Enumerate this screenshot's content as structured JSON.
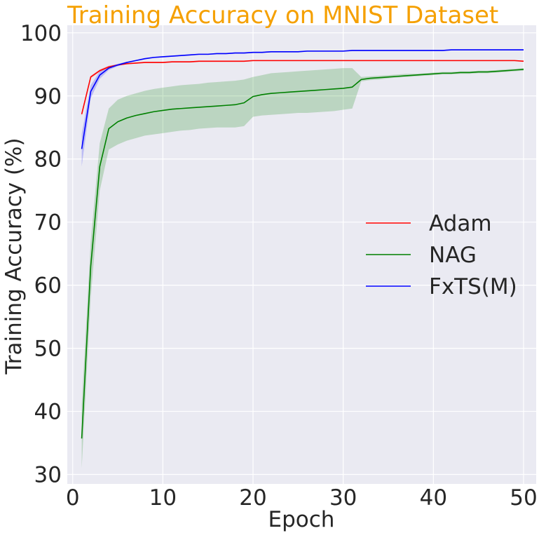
{
  "chart_data": {
    "type": "line",
    "title": "Training Accuracy on MNIST Dataset",
    "xlabel": "Epoch",
    "ylabel": "Training Accuracy (%)",
    "xlim": [
      -0.6,
      51.4
    ],
    "ylim": [
      28.5,
      101.2
    ],
    "xticks": [
      0,
      10,
      20,
      30,
      40,
      50
    ],
    "yticks": [
      30,
      40,
      50,
      60,
      70,
      80,
      90,
      100
    ],
    "grid": true,
    "legend_position": "center-right",
    "x": [
      1,
      2,
      3,
      4,
      5,
      6,
      7,
      8,
      9,
      10,
      11,
      12,
      13,
      14,
      15,
      16,
      17,
      18,
      19,
      20,
      21,
      22,
      23,
      24,
      25,
      26,
      27,
      28,
      29,
      30,
      31,
      32,
      33,
      34,
      35,
      36,
      37,
      38,
      39,
      40,
      41,
      42,
      43,
      44,
      45,
      46,
      47,
      48,
      49,
      50
    ],
    "series": [
      {
        "name": "Adam",
        "color": "#ff0000",
        "values": [
          87.1,
          93.0,
          94.0,
          94.6,
          94.9,
          95.1,
          95.2,
          95.3,
          95.3,
          95.3,
          95.4,
          95.4,
          95.4,
          95.5,
          95.5,
          95.5,
          95.5,
          95.5,
          95.5,
          95.6,
          95.6,
          95.6,
          95.6,
          95.6,
          95.6,
          95.6,
          95.6,
          95.6,
          95.6,
          95.6,
          95.6,
          95.6,
          95.6,
          95.6,
          95.6,
          95.6,
          95.6,
          95.6,
          95.6,
          95.6,
          95.6,
          95.6,
          95.6,
          95.6,
          95.6,
          95.6,
          95.6,
          95.6,
          95.6,
          95.5
        ],
        "lower": [
          86.8,
          92.8,
          93.8,
          94.4,
          94.8,
          95.0,
          95.1,
          95.2,
          95.2,
          95.2,
          95.3,
          95.3,
          95.3,
          95.4,
          95.4,
          95.4,
          95.4,
          95.4,
          95.4,
          95.5,
          95.5,
          95.5,
          95.5,
          95.5,
          95.5,
          95.5,
          95.5,
          95.5,
          95.5,
          95.5,
          95.5,
          95.5,
          95.5,
          95.5,
          95.5,
          95.5,
          95.5,
          95.5,
          95.5,
          95.5,
          95.5,
          95.5,
          95.5,
          95.5,
          95.5,
          95.5,
          95.5,
          95.5,
          95.5,
          95.4
        ],
        "upper": [
          87.4,
          93.2,
          94.2,
          94.8,
          95.0,
          95.2,
          95.3,
          95.4,
          95.4,
          95.4,
          95.5,
          95.5,
          95.5,
          95.6,
          95.6,
          95.6,
          95.6,
          95.6,
          95.6,
          95.7,
          95.7,
          95.7,
          95.7,
          95.7,
          95.7,
          95.7,
          95.7,
          95.7,
          95.7,
          95.7,
          95.7,
          95.7,
          95.7,
          95.7,
          95.7,
          95.7,
          95.7,
          95.7,
          95.7,
          95.7,
          95.7,
          95.7,
          95.7,
          95.7,
          95.7,
          95.7,
          95.7,
          95.7,
          95.7,
          95.6
        ]
      },
      {
        "name": "NAG",
        "color": "#008000",
        "values": [
          35.7,
          63.0,
          78.8,
          84.8,
          85.9,
          86.5,
          86.9,
          87.2,
          87.5,
          87.7,
          87.9,
          88.0,
          88.1,
          88.2,
          88.3,
          88.4,
          88.5,
          88.6,
          88.9,
          89.9,
          90.2,
          90.4,
          90.5,
          90.6,
          90.7,
          90.8,
          90.9,
          91.0,
          91.1,
          91.2,
          91.4,
          92.6,
          92.8,
          92.9,
          93.0,
          93.1,
          93.2,
          93.3,
          93.4,
          93.5,
          93.6,
          93.6,
          93.7,
          93.7,
          93.8,
          93.8,
          93.9,
          94.0,
          94.1,
          94.2
        ],
        "lower": [
          31.0,
          58.0,
          75.0,
          81.5,
          82.3,
          82.9,
          83.3,
          83.7,
          83.9,
          84.1,
          84.3,
          84.5,
          84.6,
          84.8,
          84.9,
          85.0,
          85.0,
          85.0,
          85.2,
          86.7,
          86.9,
          87.0,
          87.1,
          87.2,
          87.3,
          87.3,
          87.4,
          87.5,
          87.6,
          87.8,
          88.0,
          92.3,
          92.5,
          92.6,
          92.8,
          92.9,
          93.0,
          93.1,
          93.2,
          93.3,
          93.4,
          93.4,
          93.5,
          93.5,
          93.6,
          93.6,
          93.7,
          93.8,
          93.9,
          94.0
        ],
        "upper": [
          41.0,
          67.0,
          82.5,
          88.0,
          89.4,
          90.0,
          90.4,
          90.8,
          91.1,
          91.3,
          91.5,
          91.7,
          91.8,
          91.9,
          92.1,
          92.2,
          92.3,
          92.4,
          92.6,
          93.0,
          93.3,
          93.6,
          93.7,
          93.8,
          93.9,
          94.0,
          94.1,
          94.2,
          94.3,
          94.4,
          94.4,
          93.0,
          93.1,
          93.2,
          93.3,
          93.4,
          93.5,
          93.5,
          93.6,
          93.7,
          93.8,
          93.8,
          93.9,
          93.9,
          94.0,
          94.0,
          94.1,
          94.2,
          94.3,
          94.4
        ]
      },
      {
        "name": "FxTS(M)",
        "color": "#0000ff",
        "values": [
          81.6,
          90.7,
          93.3,
          94.4,
          94.9,
          95.3,
          95.6,
          95.9,
          96.1,
          96.2,
          96.3,
          96.4,
          96.5,
          96.6,
          96.6,
          96.7,
          96.7,
          96.8,
          96.8,
          96.9,
          96.9,
          97.0,
          97.0,
          97.0,
          97.0,
          97.1,
          97.1,
          97.1,
          97.1,
          97.1,
          97.2,
          97.2,
          97.2,
          97.2,
          97.2,
          97.2,
          97.2,
          97.2,
          97.2,
          97.2,
          97.2,
          97.3,
          97.3,
          97.3,
          97.3,
          97.3,
          97.3,
          97.3,
          97.3,
          97.3
        ],
        "lower": [
          78.8,
          89.6,
          92.7,
          94.1,
          94.7,
          95.2,
          95.5,
          95.8,
          96.0,
          96.1,
          96.2,
          96.3,
          96.4,
          96.5,
          96.5,
          96.6,
          96.6,
          96.7,
          96.7,
          96.8,
          96.8,
          96.9,
          96.9,
          96.9,
          96.9,
          97.0,
          97.0,
          97.0,
          97.0,
          97.0,
          97.1,
          97.1,
          97.1,
          97.1,
          97.1,
          97.1,
          97.1,
          97.1,
          97.1,
          97.1,
          97.1,
          97.2,
          97.2,
          97.2,
          97.2,
          97.2,
          97.2,
          97.2,
          97.2,
          97.2
        ],
        "upper": [
          84.0,
          91.7,
          93.9,
          94.7,
          95.1,
          95.4,
          95.7,
          96.0,
          96.2,
          96.3,
          96.4,
          96.5,
          96.6,
          96.7,
          96.7,
          96.8,
          96.8,
          96.9,
          96.9,
          97.0,
          97.0,
          97.1,
          97.1,
          97.1,
          97.1,
          97.2,
          97.2,
          97.2,
          97.2,
          97.2,
          97.3,
          97.3,
          97.3,
          97.3,
          97.3,
          97.3,
          97.3,
          97.3,
          97.3,
          97.3,
          97.3,
          97.4,
          97.4,
          97.4,
          97.4,
          97.4,
          97.4,
          97.4,
          97.4,
          97.4
        ]
      }
    ]
  }
}
